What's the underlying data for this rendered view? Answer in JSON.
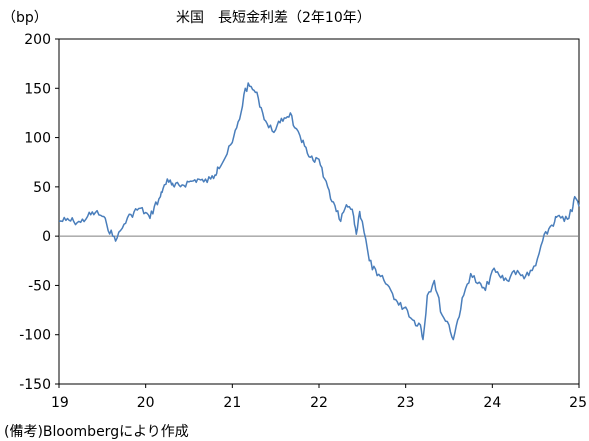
{
  "chart_data": {
    "type": "line",
    "title": "米国　長短金利差（2年10年）",
    "ylabel": "（bp）",
    "ylim": [
      -150,
      200
    ],
    "yticks": [
      200,
      150,
      100,
      50,
      0,
      -50,
      -100,
      -150
    ],
    "ytick_labels": [
      "200",
      "150",
      "100",
      "50",
      "0",
      "-50",
      "-100",
      "-150"
    ],
    "xlim": [
      2019,
      2025
    ],
    "xticks": [
      2019,
      2020,
      2021,
      2022,
      2023,
      2024,
      2025
    ],
    "xtick_labels": [
      "19",
      "20",
      "21",
      "22",
      "23",
      "24",
      "25"
    ],
    "zero_line": true,
    "grid": false,
    "line_color": "#4a7ebb",
    "series": [
      {
        "x": [
          2019.0,
          2019.08,
          2019.17,
          2019.25,
          2019.33,
          2019.42,
          2019.5,
          2019.55,
          2019.62,
          2019.67,
          2019.75,
          2019.83,
          2019.92,
          2020.0,
          2020.05,
          2020.1,
          2020.17,
          2020.2,
          2020.25,
          2020.3,
          2020.33,
          2020.42,
          2020.5,
          2020.55,
          2020.6,
          2020.67,
          2020.75,
          2020.8,
          2020.83,
          2020.92,
          2021.0,
          2021.05,
          2021.1,
          2021.15,
          2021.2,
          2021.25,
          2021.3,
          2021.35,
          2021.42,
          2021.5,
          2021.55,
          2021.6,
          2021.67,
          2021.72,
          2021.8,
          2021.85,
          2021.9,
          2021.95,
          2022.0,
          2022.05,
          2022.1,
          2022.15,
          2022.2,
          2022.25,
          2022.3,
          2022.35,
          2022.4,
          2022.43,
          2022.47,
          2022.5,
          2022.58,
          2022.67,
          2022.75,
          2022.83,
          2022.92,
          2023.0,
          2023.08,
          2023.17,
          2023.2,
          2023.25,
          2023.33,
          2023.42,
          2023.5,
          2023.55,
          2023.6,
          2023.67,
          2023.75,
          2023.83,
          2023.92,
          2024.0,
          2024.08,
          2024.17,
          2024.25,
          2024.33,
          2024.42,
          2024.5,
          2024.58,
          2024.67,
          2024.72,
          2024.75,
          2024.83,
          2024.92,
          2024.95,
          2025.0
        ],
        "y": [
          15,
          16,
          15,
          14,
          20,
          24,
          20,
          12,
          0,
          -2,
          12,
          22,
          28,
          24,
          18,
          30,
          40,
          48,
          58,
          52,
          50,
          52,
          55,
          56,
          58,
          55,
          58,
          62,
          70,
          80,
          95,
          110,
          125,
          150,
          152,
          148,
          140,
          125,
          110,
          108,
          115,
          120,
          125,
          110,
          95,
          90,
          80,
          75,
          78,
          60,
          50,
          35,
          25,
          15,
          28,
          30,
          20,
          2,
          25,
          15,
          -25,
          -40,
          -45,
          -55,
          -70,
          -72,
          -85,
          -90,
          -105,
          -60,
          -45,
          -80,
          -90,
          -105,
          -85,
          -60,
          -38,
          -48,
          -55,
          -35,
          -40,
          -45,
          -35,
          -40,
          -40,
          -30,
          -5,
          10,
          15,
          20,
          15,
          25,
          40,
          30
        ]
      }
    ]
  },
  "note": "(備考)Bloombergにより作成"
}
